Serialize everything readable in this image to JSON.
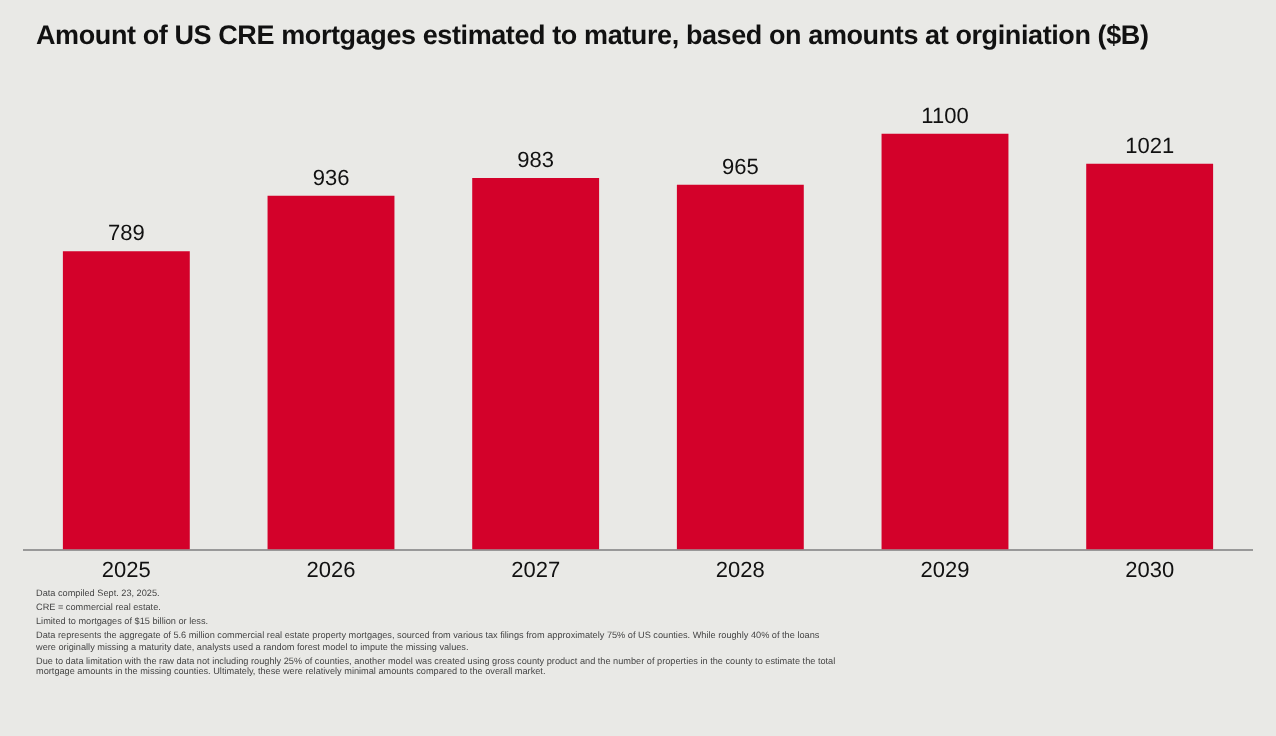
{
  "chart_data": {
    "type": "bar",
    "title": "Amount of US CRE mortgages estimated to mature, based on amounts at orginiation ($B)",
    "categories": [
      "2025",
      "2026",
      "2027",
      "2028",
      "2029",
      "2030"
    ],
    "values": [
      789,
      936,
      983,
      965,
      1100,
      1021
    ],
    "color": "#d3012a",
    "data_labels": true,
    "grid": false,
    "legend": false,
    "annotations": [
      "Data compiled Sept. 23, 2025.",
      "CRE = commercial real estate.",
      "Limited to mortgages of $15 billion or less.",
      "Data represents the aggregate of 5.6 million commercial real estate property mortgages, sourced from various tax filings from approximately 75% of US counties. While roughly 40% of the loans were originally missing a maturity date, analysts used a random forest model to impute the missing values.",
      "Due to data limitation with the raw data not including roughly 25% of counties, another model was created using gross county product and the number of properties in the county to estimate the total mortgage amounts in the missing counties. Ultimately, these were relatively minimal amounts compared to the overall market."
    ]
  }
}
